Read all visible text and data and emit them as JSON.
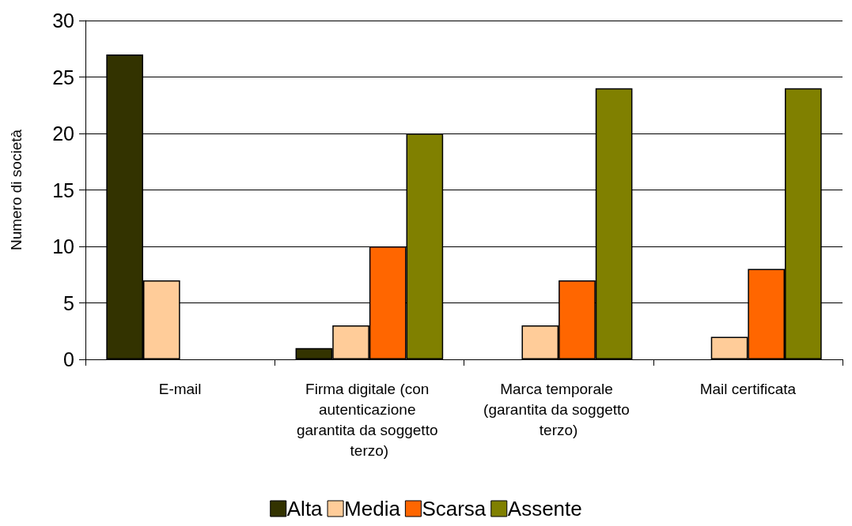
{
  "chart_data": {
    "type": "bar",
    "ylabel": "Numero di società",
    "categories": [
      "E-mail",
      "Firma digitale (con autenticazione garantita da soggetto terzo)",
      "Marca temporale (garantita da soggetto terzo)",
      "Mail certificata"
    ],
    "series": [
      {
        "name": "Alta",
        "color": "#333300",
        "values": [
          27,
          1,
          null,
          null
        ]
      },
      {
        "name": "Media",
        "color": "#ffcc99",
        "values": [
          7,
          3,
          3,
          2
        ]
      },
      {
        "name": "Scarsa",
        "color": "#ff6600",
        "values": [
          null,
          10,
          7,
          8
        ]
      },
      {
        "name": "Assente",
        "color": "#808000",
        "values": [
          null,
          20,
          24,
          24
        ]
      }
    ],
    "ylim": [
      0,
      30
    ],
    "yticks": [
      0,
      5,
      10,
      15,
      20,
      25,
      30
    ],
    "grid": "y",
    "legend": "bottom"
  }
}
